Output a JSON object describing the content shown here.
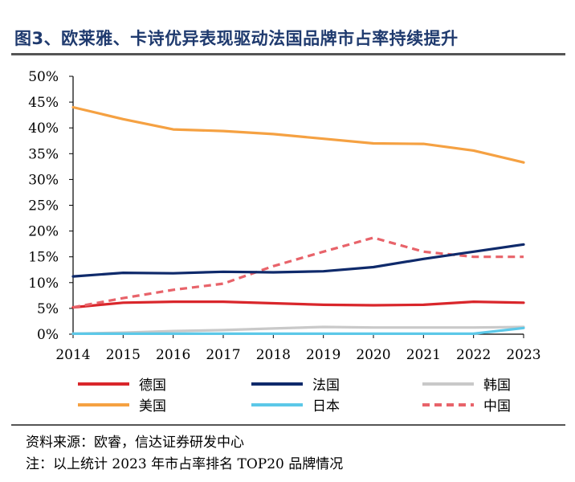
{
  "header": {
    "title": "图3、欧莱雅、卡诗优异表现驱动法国品牌市占率持续提升"
  },
  "footer": {
    "source": "资料来源：欧睿，信达证券研发中心",
    "note": "注：以上统计 2023 年市占率排名 TOP20 品牌情况"
  },
  "chart_data": {
    "type": "line",
    "x": [
      "2014",
      "2015",
      "2016",
      "2017",
      "2018",
      "2019",
      "2020",
      "2021",
      "2022",
      "2023"
    ],
    "ylim": [
      0,
      50
    ],
    "yticks": [
      "0%",
      "5%",
      "10%",
      "15%",
      "20%",
      "25%",
      "30%",
      "35%",
      "40%",
      "45%",
      "50%"
    ],
    "grid": false,
    "legend_position": "bottom",
    "series": [
      {
        "name": "德国",
        "color": "#d9262b",
        "dash": false,
        "values": [
          5.2,
          6.1,
          6.3,
          6.3,
          6.0,
          5.7,
          5.6,
          5.7,
          6.3,
          6.1
        ]
      },
      {
        "name": "法国",
        "color": "#0f2a6b",
        "dash": false,
        "values": [
          11.2,
          11.9,
          11.8,
          12.1,
          12.0,
          12.2,
          13.0,
          14.6,
          16.0,
          17.4
        ]
      },
      {
        "name": "韩国",
        "color": "#c9c9c9",
        "dash": false,
        "values": [
          0.1,
          0.3,
          0.6,
          0.8,
          1.1,
          1.4,
          1.3,
          1.3,
          1.3,
          1.4
        ]
      },
      {
        "name": "美国",
        "color": "#f5a142",
        "dash": false,
        "values": [
          44.0,
          41.7,
          39.7,
          39.4,
          38.8,
          37.9,
          37.0,
          36.9,
          35.6,
          33.3
        ]
      },
      {
        "name": "日本",
        "color": "#5cc8e8",
        "dash": false,
        "values": [
          0.1,
          0.1,
          0.1,
          0.1,
          0.1,
          0.1,
          0.1,
          0.1,
          0.1,
          1.2
        ]
      },
      {
        "name": "中国",
        "color": "#e8636a",
        "dash": true,
        "values": [
          5.2,
          7.0,
          8.6,
          9.8,
          13.2,
          16.0,
          18.7,
          16.0,
          15.0,
          15.0
        ]
      }
    ]
  }
}
